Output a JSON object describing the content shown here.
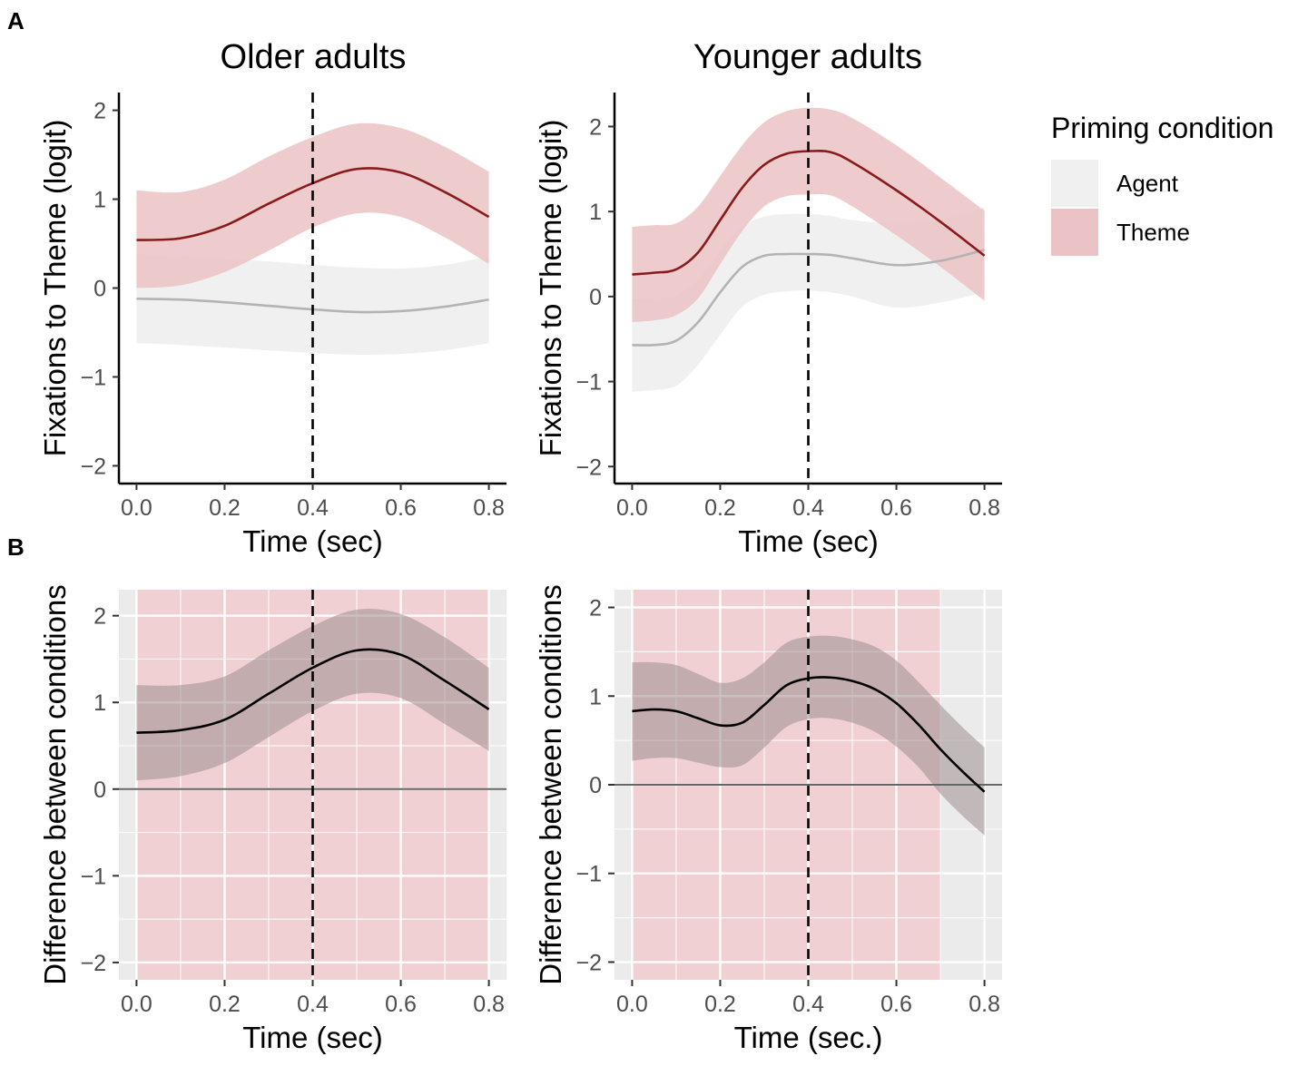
{
  "panel_labels": [
    "A",
    "B"
  ],
  "legend": {
    "title": "Priming condition",
    "items": [
      {
        "label": "Agent",
        "color": "#f0f0f0",
        "line": "#b3b3b3"
      },
      {
        "label": "Theme",
        "color": "#ebc3c6",
        "line": "#8b1a1a"
      }
    ]
  },
  "colors": {
    "theme_band": "#ebc3c6",
    "theme_line": "#8b1a1a",
    "agent_band": "#f0f0f0",
    "agent_line": "#b3b3b3",
    "diff_band": "#9e8e90",
    "sig_region": "#f0d0d3",
    "panel_bg": "#ebebeb"
  },
  "chart_data": [
    {
      "id": "A-older",
      "type": "line",
      "title": "Older adults",
      "xlabel": "Time (sec)",
      "ylabel": "Fixations to Theme (logit)",
      "xlim": [
        -0.04,
        0.84
      ],
      "ylim": [
        -2.2,
        2.2
      ],
      "xticks": [
        0.0,
        0.2,
        0.4,
        0.6,
        0.8
      ],
      "xtick_labels": [
        "0.0",
        "0.2",
        "0.4",
        "0.6",
        "0.8"
      ],
      "yticks": [
        -2,
        -1,
        0,
        1,
        2
      ],
      "ytick_labels": [
        "−2",
        "−1",
        "0",
        "1",
        "2"
      ],
      "vline": 0.4,
      "x": [
        0.0,
        0.1,
        0.2,
        0.3,
        0.4,
        0.5,
        0.6,
        0.7,
        0.8
      ],
      "series": [
        {
          "name": "Agent",
          "values": [
            -0.12,
            -0.13,
            -0.16,
            -0.2,
            -0.24,
            -0.27,
            -0.26,
            -0.21,
            -0.13
          ],
          "lower": [
            -0.62,
            -0.64,
            -0.67,
            -0.7,
            -0.73,
            -0.75,
            -0.74,
            -0.7,
            -0.62
          ],
          "upper": [
            0.38,
            0.36,
            0.33,
            0.3,
            0.26,
            0.23,
            0.22,
            0.26,
            0.36
          ]
        },
        {
          "name": "Theme",
          "values": [
            0.54,
            0.56,
            0.7,
            0.95,
            1.18,
            1.34,
            1.3,
            1.08,
            0.8
          ],
          "lower": [
            0.0,
            0.03,
            0.18,
            0.42,
            0.68,
            0.84,
            0.8,
            0.57,
            0.27
          ],
          "upper": [
            1.1,
            1.08,
            1.22,
            1.48,
            1.7,
            1.85,
            1.8,
            1.59,
            1.31
          ]
        }
      ]
    },
    {
      "id": "A-younger",
      "type": "line",
      "title": "Younger adults",
      "xlabel": "Time (sec)",
      "ylabel": "Fixations to Theme (logit)",
      "xlim": [
        -0.04,
        0.84
      ],
      "ylim": [
        -2.2,
        2.4
      ],
      "xticks": [
        0.0,
        0.2,
        0.4,
        0.6,
        0.8
      ],
      "xtick_labels": [
        "0.0",
        "0.2",
        "0.4",
        "0.6",
        "0.8"
      ],
      "yticks": [
        -2,
        -1,
        0,
        1,
        2
      ],
      "ytick_labels": [
        "−2",
        "−1",
        "0",
        "1",
        "2"
      ],
      "vline": 0.4,
      "x": [
        0.0,
        0.05,
        0.1,
        0.15,
        0.2,
        0.25,
        0.3,
        0.35,
        0.4,
        0.45,
        0.5,
        0.6,
        0.7,
        0.8
      ],
      "series": [
        {
          "name": "Agent",
          "values": [
            -0.57,
            -0.57,
            -0.52,
            -0.3,
            0.05,
            0.35,
            0.48,
            0.5,
            0.5,
            0.49,
            0.45,
            0.37,
            0.42,
            0.55
          ],
          "lower": [
            -1.12,
            -1.1,
            -1.05,
            -0.8,
            -0.45,
            -0.12,
            0.02,
            0.06,
            0.07,
            0.05,
            0.0,
            -0.13,
            -0.07,
            0.05
          ],
          "upper": [
            -0.02,
            -0.02,
            0.01,
            0.2,
            0.55,
            0.82,
            0.94,
            0.97,
            0.97,
            0.95,
            0.9,
            0.86,
            0.91,
            1.05
          ]
        },
        {
          "name": "Theme",
          "values": [
            0.26,
            0.28,
            0.32,
            0.52,
            0.9,
            1.28,
            1.55,
            1.68,
            1.71,
            1.7,
            1.58,
            1.25,
            0.88,
            0.48
          ],
          "lower": [
            -0.3,
            -0.28,
            -0.22,
            -0.02,
            0.38,
            0.77,
            1.06,
            1.18,
            1.2,
            1.19,
            1.06,
            0.72,
            0.35,
            -0.05
          ],
          "upper": [
            0.82,
            0.84,
            0.86,
            1.06,
            1.42,
            1.78,
            2.05,
            2.18,
            2.22,
            2.2,
            2.1,
            1.78,
            1.4,
            1.01
          ]
        }
      ]
    },
    {
      "id": "B-older",
      "type": "line",
      "title": "",
      "xlabel": "Time (sec)",
      "ylabel": "Difference between conditions",
      "xlim": [
        -0.04,
        0.84
      ],
      "ylim": [
        -2.2,
        2.3
      ],
      "xticks": [
        0.0,
        0.2,
        0.4,
        0.6,
        0.8
      ],
      "xtick_labels": [
        "0.0",
        "0.2",
        "0.4",
        "0.6",
        "0.8"
      ],
      "yticks": [
        -2,
        -1,
        0,
        1,
        2
      ],
      "ytick_labels": [
        "−2",
        "−1",
        "0",
        "1",
        "2"
      ],
      "vline": 0.4,
      "hline": 0,
      "significant_region": [
        0.0,
        0.8
      ],
      "x": [
        0.0,
        0.1,
        0.2,
        0.3,
        0.4,
        0.5,
        0.6,
        0.7,
        0.8
      ],
      "series": [
        {
          "name": "Difference",
          "values": [
            0.65,
            0.68,
            0.8,
            1.1,
            1.4,
            1.6,
            1.55,
            1.25,
            0.92
          ],
          "lower": [
            0.1,
            0.15,
            0.3,
            0.6,
            0.9,
            1.1,
            1.05,
            0.75,
            0.44
          ],
          "upper": [
            1.2,
            1.2,
            1.3,
            1.6,
            1.88,
            2.07,
            2.02,
            1.75,
            1.4
          ]
        }
      ]
    },
    {
      "id": "B-younger",
      "type": "line",
      "title": "",
      "xlabel": "Time (sec.)",
      "ylabel": "Difference between conditions",
      "xlim": [
        -0.04,
        0.84
      ],
      "ylim": [
        -2.2,
        2.2
      ],
      "xticks": [
        0.0,
        0.2,
        0.4,
        0.6,
        0.8
      ],
      "xtick_labels": [
        "0.0",
        "0.2",
        "0.4",
        "0.6",
        "0.8"
      ],
      "yticks": [
        -2,
        -1,
        0,
        1,
        2
      ],
      "ytick_labels": [
        "−2",
        "−1",
        "0",
        "1",
        "2"
      ],
      "vline": 0.4,
      "hline": 0,
      "significant_region": [
        0.0,
        0.7
      ],
      "x": [
        0.0,
        0.05,
        0.1,
        0.15,
        0.2,
        0.25,
        0.3,
        0.35,
        0.4,
        0.45,
        0.5,
        0.55,
        0.6,
        0.65,
        0.7,
        0.75,
        0.8
      ],
      "series": [
        {
          "name": "Difference",
          "values": [
            0.83,
            0.85,
            0.83,
            0.75,
            0.67,
            0.7,
            0.9,
            1.12,
            1.2,
            1.21,
            1.17,
            1.08,
            0.92,
            0.68,
            0.4,
            0.15,
            -0.08
          ],
          "lower": [
            0.27,
            0.3,
            0.3,
            0.25,
            0.2,
            0.22,
            0.42,
            0.65,
            0.74,
            0.75,
            0.7,
            0.6,
            0.43,
            0.2,
            -0.1,
            -0.35,
            -0.57
          ],
          "upper": [
            1.38,
            1.38,
            1.35,
            1.25,
            1.15,
            1.2,
            1.38,
            1.6,
            1.67,
            1.68,
            1.64,
            1.56,
            1.4,
            1.16,
            0.9,
            0.65,
            0.42
          ]
        }
      ]
    }
  ]
}
